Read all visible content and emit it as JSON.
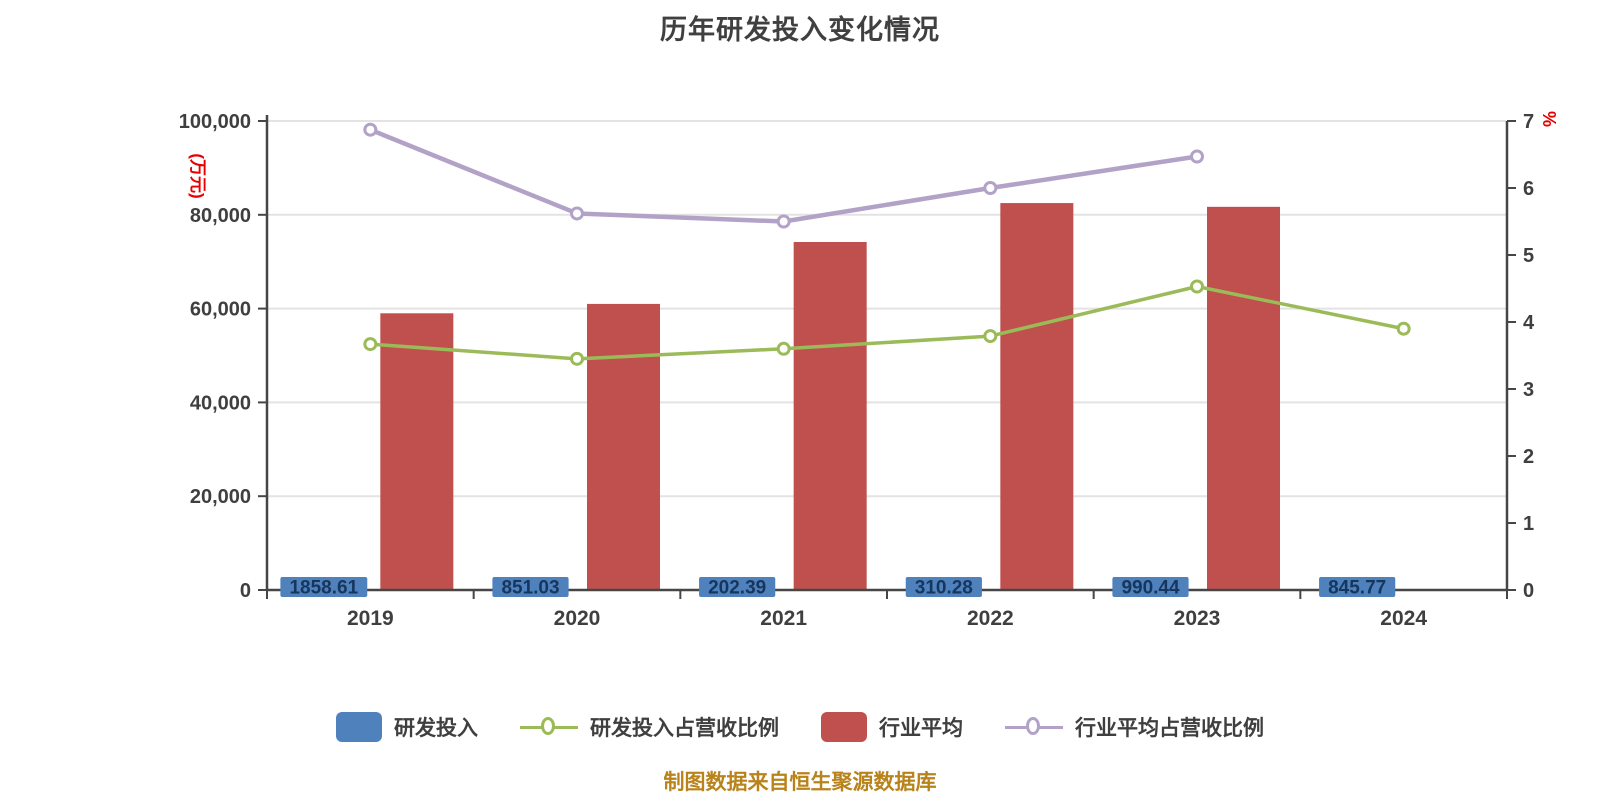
{
  "title": "历年研发投入变化情况",
  "caption": "制图数据来自恒生聚源数据库",
  "left_axis": {
    "unit": "(万元)",
    "ticks": [
      "0",
      "20,000",
      "40,000",
      "60,000",
      "80,000",
      "100,000"
    ],
    "tick_values": [
      0,
      20000,
      40000,
      60000,
      80000,
      100000
    ],
    "max": 100000
  },
  "right_axis": {
    "unit": "%",
    "ticks": [
      "0",
      "1",
      "2",
      "3",
      "4",
      "5",
      "6",
      "7"
    ],
    "tick_values": [
      0,
      1,
      2,
      3,
      4,
      5,
      6,
      7
    ],
    "max": 7
  },
  "legend": {
    "items": [
      {
        "label": "研发投入",
        "type": "rect",
        "color": "#4f81bd"
      },
      {
        "label": "研发投入占营收比例",
        "type": "line",
        "color": "#9bbb59"
      },
      {
        "label": "行业平均",
        "type": "rect",
        "color": "#c0504d"
      },
      {
        "label": "行业平均占营收比例",
        "type": "line",
        "color": "#b3a2c7"
      }
    ]
  },
  "colors": {
    "rd_bar": "#4f81bd",
    "industry_bar": "#c0504d",
    "rd_ratio_line": "#9bbb59",
    "industry_ratio_line": "#b3a2c7",
    "grid": "#e3e3e3",
    "axis": "#464646",
    "tick_text": "#3f3f3f",
    "bar_label_text": "#17365d",
    "unit_text": "#e60000"
  },
  "chart_data": {
    "type": "bar",
    "subtype": "bar-line combo, dual axis",
    "categories": [
      "2019",
      "2020",
      "2021",
      "2022",
      "2023",
      "2024"
    ],
    "series": [
      {
        "name": "研发投入",
        "type": "bar",
        "axis": "left",
        "color": "#4f81bd",
        "values": [
          1858.61,
          851.03,
          202.39,
          310.28,
          990.44,
          845.77
        ],
        "labels": [
          "1858.61",
          "851.03",
          "202.39",
          "310.28",
          "990.44",
          "845.77"
        ]
      },
      {
        "name": "行业平均",
        "type": "bar",
        "axis": "left",
        "color": "#c0504d",
        "values": [
          59000,
          61000,
          74200,
          82500,
          81700,
          null
        ]
      },
      {
        "name": "研发投入占营收比例",
        "type": "line",
        "axis": "right",
        "color": "#9bbb59",
        "values": [
          3.67,
          3.45,
          3.6,
          3.79,
          4.53,
          3.9
        ]
      },
      {
        "name": "行业平均占营收比例",
        "type": "line",
        "axis": "right",
        "color": "#b3a2c7",
        "values": [
          6.87,
          5.62,
          5.5,
          6.0,
          6.47,
          null
        ]
      }
    ],
    "title": "历年研发投入变化情况",
    "xlabel": "",
    "ylabel_left": "(万元)",
    "ylabel_right": "%",
    "left_ylim": [
      0,
      100000
    ],
    "right_ylim": [
      0,
      7
    ],
    "grid": true,
    "legend_position": "bottom"
  }
}
